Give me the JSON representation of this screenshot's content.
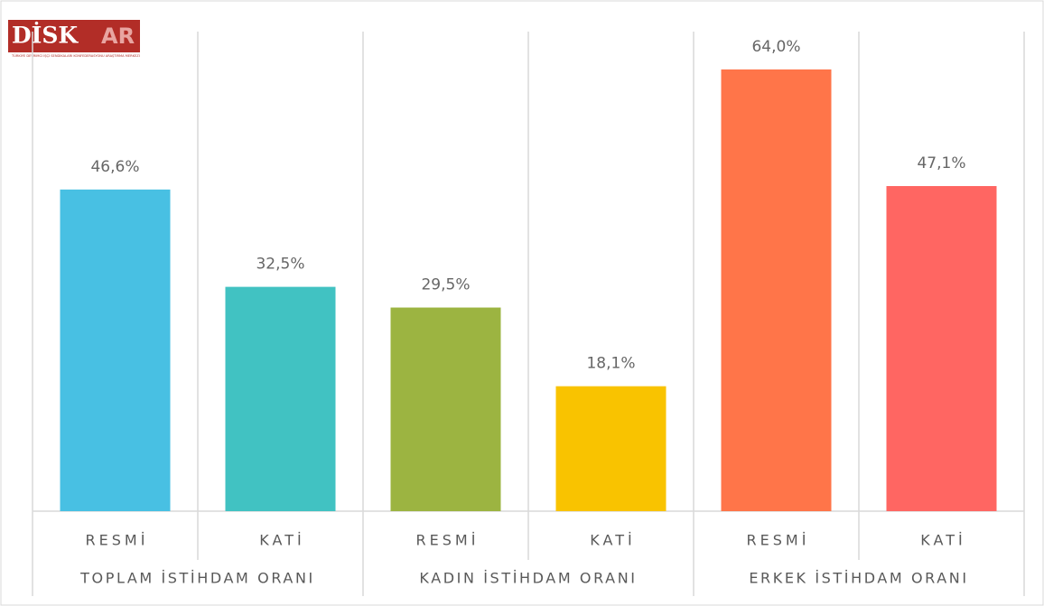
{
  "logo": {
    "name_left": "DİSK",
    "name_right": "AR",
    "subtitle": "TÜRKİYE DEVRİMCİ İŞÇİ SENDİKALARI KONFEDERASYONU ARAŞTIRMA MERKEZİ"
  },
  "chart_data": {
    "type": "bar",
    "ylim": [
      0,
      70
    ],
    "groups": [
      {
        "name": "TOPLAM İSTİHDAM ORANI",
        "categories": [
          "RESMİ",
          "KATİ"
        ],
        "values": [
          46.6,
          32.5
        ],
        "value_labels": [
          "46,6%",
          "32,5%"
        ],
        "colors": [
          "#48c0e3",
          "#41c2c2"
        ]
      },
      {
        "name": "KADIN İSTİHDAM ORANI",
        "categories": [
          "RESMİ",
          "KATİ"
        ],
        "values": [
          29.5,
          18.1
        ],
        "value_labels": [
          "29,5%",
          "18,1%"
        ],
        "colors": [
          "#9cb441",
          "#f9c300"
        ]
      },
      {
        "name": "ERKEK İSTİHDAM ORANI",
        "categories": [
          "RESMİ",
          "KATİ"
        ],
        "values": [
          64.0,
          47.1
        ],
        "value_labels": [
          "64,0%",
          "47,1%"
        ],
        "colors": [
          "#ff7549",
          "#ff6662"
        ]
      }
    ]
  }
}
